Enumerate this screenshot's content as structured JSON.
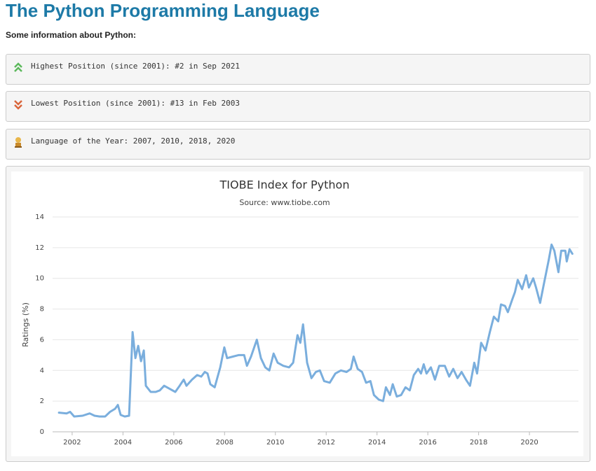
{
  "header": {
    "title": "The Python Programming Language",
    "subtitle": "Some information about Python:"
  },
  "info": [
    "Highest Position (since 2001): #2 in Sep 2021",
    "Lowest Position (since 2001): #13 in Feb 2003",
    "Language of the Year: 2007, 2010, 2018, 2020"
  ],
  "chart_data": {
    "type": "line",
    "title": "TIOBE Index for Python",
    "subtitle": "Source: www.tiobe.com",
    "y_label": "Ratings (%)",
    "color": "#7aaedd",
    "grid": true,
    "xlim": [
      2001.23,
      2021.93
    ],
    "xticks": [
      2002,
      2004,
      2006,
      2008,
      2010,
      2012,
      2014,
      2016,
      2018,
      2020
    ],
    "ylim": [
      0,
      14
    ],
    "yticks": [
      0,
      2,
      4,
      6,
      8,
      10,
      12,
      14
    ],
    "x": [
      2001.48,
      2001.78,
      2001.92,
      2002.08,
      2002.41,
      2002.69,
      2002.88,
      2003.08,
      2003.3,
      2003.49,
      2003.69,
      2003.8,
      2003.91,
      2004.07,
      2004.24,
      2004.38,
      2004.49,
      2004.6,
      2004.71,
      2004.82,
      2004.9,
      2005.09,
      2005.29,
      2005.45,
      2005.62,
      2005.84,
      2006.06,
      2006.23,
      2006.39,
      2006.5,
      2006.72,
      2006.92,
      2007.08,
      2007.22,
      2007.33,
      2007.44,
      2007.61,
      2007.83,
      2007.99,
      2008.1,
      2008.33,
      2008.55,
      2008.77,
      2008.88,
      2009.04,
      2009.27,
      2009.43,
      2009.6,
      2009.76,
      2009.93,
      2010.09,
      2010.31,
      2010.54,
      2010.7,
      2010.87,
      2010.98,
      2011.09,
      2011.25,
      2011.42,
      2011.59,
      2011.75,
      2011.92,
      2012.14,
      2012.36,
      2012.58,
      2012.8,
      2012.97,
      2013.08,
      2013.24,
      2013.41,
      2013.57,
      2013.74,
      2013.88,
      2014.07,
      2014.24,
      2014.35,
      2014.51,
      2014.62,
      2014.78,
      2014.95,
      2015.12,
      2015.29,
      2015.45,
      2015.62,
      2015.73,
      2015.84,
      2015.95,
      2016.12,
      2016.28,
      2016.45,
      2016.67,
      2016.84,
      2017.0,
      2017.17,
      2017.33,
      2017.5,
      2017.66,
      2017.83,
      2017.94,
      2018.1,
      2018.27,
      2018.44,
      2018.6,
      2018.77,
      2018.88,
      2019.04,
      2019.15,
      2019.32,
      2019.43,
      2019.54,
      2019.71,
      2019.87,
      2019.98,
      2020.15,
      2020.26,
      2020.42,
      2020.59,
      2020.76,
      2020.87,
      2020.98,
      2021.14,
      2021.25,
      2021.41,
      2021.47,
      2021.58,
      2021.69
    ],
    "values": [
      1.25,
      1.2,
      1.3,
      1.0,
      1.05,
      1.2,
      1.05,
      1.0,
      1.0,
      1.3,
      1.5,
      1.75,
      1.1,
      1.0,
      1.05,
      6.5,
      4.8,
      5.6,
      4.6,
      5.3,
      3.0,
      2.6,
      2.6,
      2.7,
      3.0,
      2.8,
      2.6,
      3.0,
      3.4,
      3.0,
      3.4,
      3.7,
      3.6,
      3.9,
      3.8,
      3.1,
      2.9,
      4.2,
      5.5,
      4.8,
      4.9,
      5.0,
      5.0,
      4.3,
      4.9,
      6.0,
      4.8,
      4.2,
      4.0,
      5.1,
      4.5,
      4.3,
      4.2,
      4.5,
      6.3,
      5.8,
      7.0,
      4.5,
      3.5,
      3.9,
      4.0,
      3.3,
      3.2,
      3.8,
      4.0,
      3.9,
      4.1,
      4.9,
      4.1,
      3.9,
      3.2,
      3.3,
      2.4,
      2.1,
      2.0,
      2.9,
      2.4,
      3.1,
      2.3,
      2.4,
      2.9,
      2.7,
      3.7,
      4.1,
      3.8,
      4.4,
      3.8,
      4.2,
      3.4,
      4.3,
      4.3,
      3.6,
      4.1,
      3.5,
      3.9,
      3.4,
      3.0,
      4.5,
      3.8,
      5.8,
      5.3,
      6.5,
      7.5,
      7.2,
      8.3,
      8.2,
      7.8,
      8.6,
      9.1,
      9.9,
      9.3,
      10.2,
      9.4,
      10.0,
      9.4,
      8.4,
      9.8,
      11.2,
      12.2,
      11.8,
      10.4,
      11.8,
      11.8,
      11.1,
      11.9,
      11.6
    ]
  }
}
